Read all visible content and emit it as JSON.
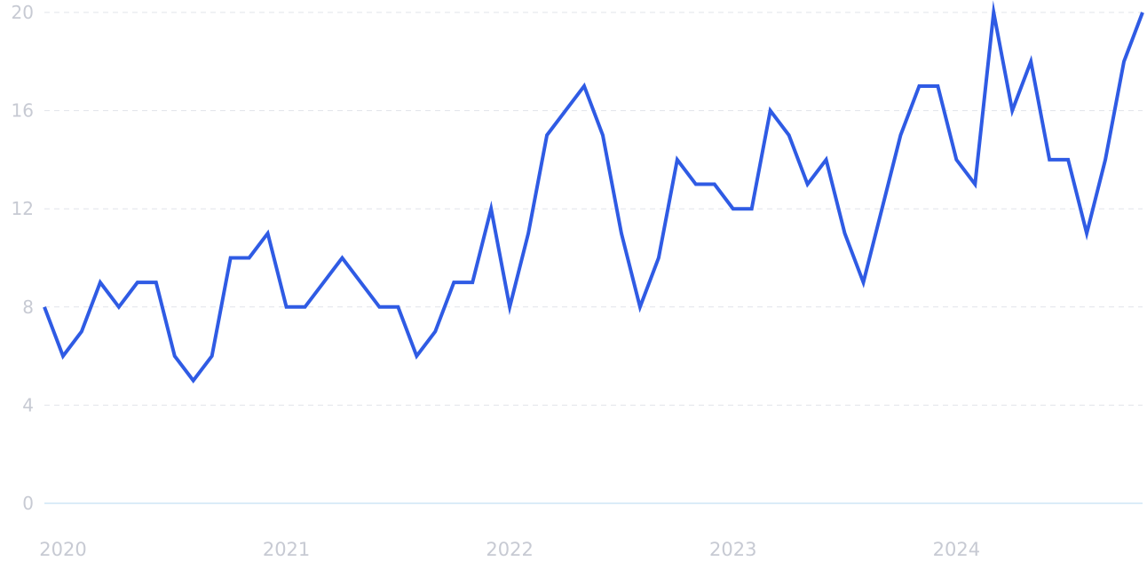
{
  "chart_data": {
    "type": "line",
    "title": "",
    "xlabel": "",
    "ylabel": "",
    "ylim": [
      0,
      20
    ],
    "y_ticks": [
      "0",
      "4",
      "8",
      "12",
      "16",
      "20"
    ],
    "x_ticks": [
      "2020",
      "2021",
      "2022",
      "2023",
      "2024"
    ],
    "grid": true,
    "line_color": "#2f5be4",
    "x_start": "2019-12",
    "x_frequency": "monthly",
    "series": [
      {
        "values": [
          8,
          6,
          7,
          9,
          8,
          9,
          9,
          6,
          5,
          6,
          10,
          10,
          11,
          8,
          8,
          9,
          10,
          9,
          8,
          8,
          6,
          7,
          9,
          9,
          12,
          8,
          11,
          15,
          16,
          17,
          15,
          11,
          8,
          10,
          14,
          13,
          13,
          12,
          12,
          16,
          15,
          13,
          14,
          11,
          9,
          12,
          15,
          17,
          17,
          14,
          13,
          20,
          16,
          18,
          14,
          14,
          11,
          14,
          18,
          20
        ]
      }
    ]
  }
}
